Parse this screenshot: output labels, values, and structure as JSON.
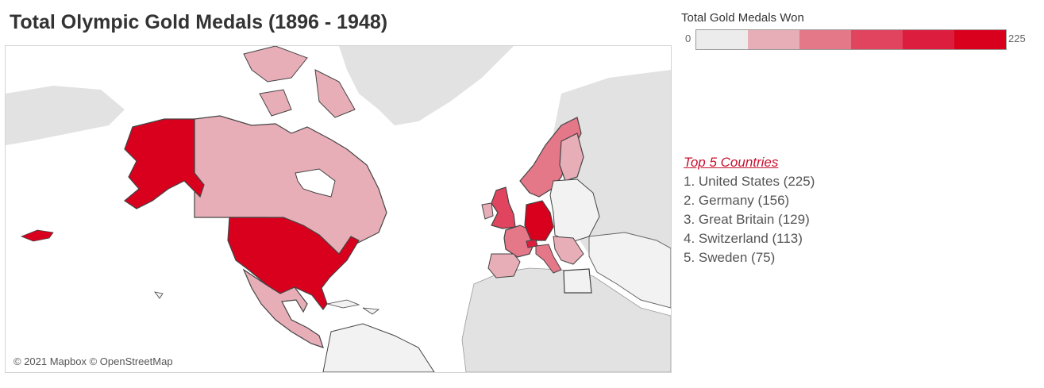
{
  "title": "Total Olympic Gold Medals (1896 - 1948)",
  "legend": {
    "title": "Total Gold Medals Won",
    "min_label": "0",
    "max_label": "225",
    "min": 0,
    "max": 225,
    "steps": [
      "#ececec",
      "#e8aeb8",
      "#e47788",
      "#e0445f",
      "#dc1d3e",
      "#d9001e"
    ]
  },
  "top5": {
    "title": "Top 5 Countries",
    "items": [
      {
        "label": "1. United States (225)",
        "country": "United States",
        "value": 225
      },
      {
        "label": "2. Germany (156)",
        "country": "Germany",
        "value": 156
      },
      {
        "label": "3. Great Britain (129)",
        "country": "Great Britain",
        "value": 129
      },
      {
        "label": "4. Switzerland (113)",
        "country": "Switzerland",
        "value": 113
      },
      {
        "label": "5. Sweden (75)",
        "country": "Sweden",
        "value": 75
      }
    ]
  },
  "map": {
    "attribution": "© 2021 Mapbox © OpenStreetMap",
    "colors": {
      "land_nodata": "#e2e2e2",
      "land_low": "#f2f2f2",
      "border": "#444444",
      "highest": "#d9001e",
      "high": "#e0445f",
      "mid": "#e47788",
      "low": "#e8aeb8"
    }
  }
}
